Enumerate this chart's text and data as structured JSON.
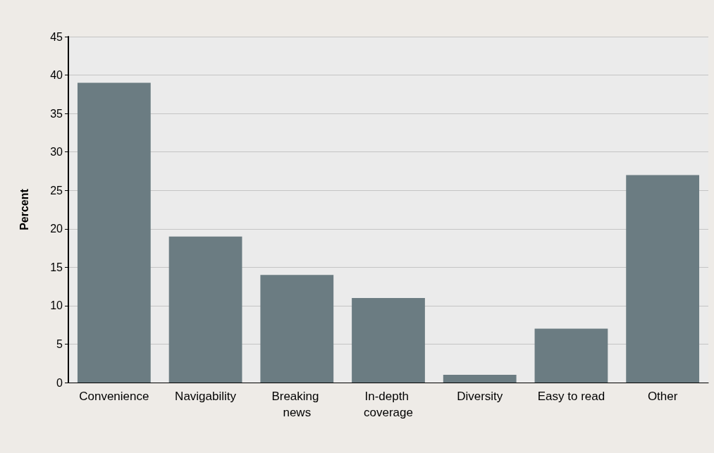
{
  "chart_data": {
    "type": "bar",
    "ylabel": "Percent",
    "categories": [
      "Convenience",
      "Navigability",
      "Breaking news",
      "In-depth coverage",
      "Diversity",
      "Easy to read",
      "Other"
    ],
    "values": [
      39,
      19,
      14,
      11,
      1,
      7,
      27
    ],
    "color": "#6b7c82",
    "ylim": [
      0,
      45
    ],
    "yticks": [
      0,
      5,
      10,
      15,
      20,
      25,
      30,
      35,
      40,
      45
    ],
    "grid": "y"
  }
}
